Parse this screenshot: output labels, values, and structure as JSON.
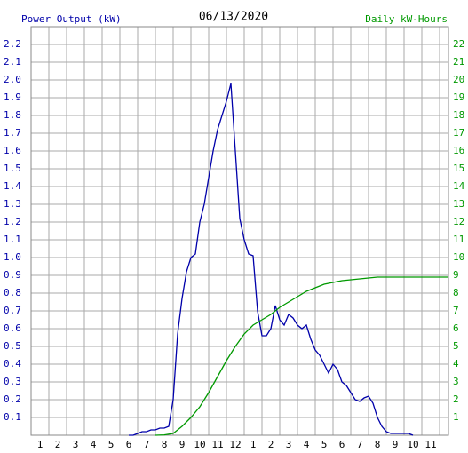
{
  "chart_data": {
    "type": "line",
    "title": "06/13/2020",
    "ylabel": "Power Output (kW)",
    "y2label": "Daily kW-Hours",
    "xlim": [
      0,
      23.5
    ],
    "xticks": [
      {
        "value": 0.5,
        "label": "1"
      },
      {
        "value": 1.5,
        "label": "2"
      },
      {
        "value": 2.5,
        "label": "3"
      },
      {
        "value": 3.5,
        "label": "4"
      },
      {
        "value": 4.5,
        "label": "5"
      },
      {
        "value": 5.5,
        "label": "6"
      },
      {
        "value": 6.5,
        "label": "7"
      },
      {
        "value": 7.5,
        "label": "8"
      },
      {
        "value": 8.5,
        "label": "9"
      },
      {
        "value": 9.5,
        "label": "10"
      },
      {
        "value": 10.5,
        "label": "11"
      },
      {
        "value": 11.5,
        "label": "12"
      },
      {
        "value": 12.5,
        "label": "1"
      },
      {
        "value": 13.5,
        "label": "2"
      },
      {
        "value": 14.5,
        "label": "3"
      },
      {
        "value": 15.5,
        "label": "4"
      },
      {
        "value": 16.5,
        "label": "5"
      },
      {
        "value": 17.5,
        "label": "6"
      },
      {
        "value": 18.5,
        "label": "7"
      },
      {
        "value": 19.5,
        "label": "8"
      },
      {
        "value": 20.5,
        "label": "9"
      },
      {
        "value": 21.5,
        "label": "10"
      },
      {
        "value": 22.5,
        "label": "11"
      }
    ],
    "ylim": [
      0,
      2.3
    ],
    "yticks": [
      0.1,
      0.2,
      0.3,
      0.4,
      0.5,
      0.6,
      0.7,
      0.8,
      0.9,
      {
        "value": 1,
        "label": "1.0"
      },
      1.1,
      1.2,
      1.3,
      1.4,
      1.5,
      1.6,
      1.7,
      1.8,
      1.9,
      {
        "value": 2,
        "label": "2.0"
      },
      2.1,
      2.2
    ],
    "y2lim": [
      0,
      23
    ],
    "y2ticks": [
      1,
      2,
      3,
      4,
      5,
      6,
      7,
      8,
      9,
      10,
      11,
      12,
      13,
      14,
      15,
      16,
      17,
      18,
      19,
      20,
      21,
      22
    ],
    "grid": true,
    "series": [
      {
        "color": "#0000aa",
        "x": [
          5.5,
          5.75,
          6,
          6.25,
          6.5,
          6.75,
          7,
          7.25,
          7.5,
          7.75,
          8,
          8.25,
          8.5,
          8.75,
          9,
          9.25,
          9.5,
          9.75,
          10,
          10.25,
          10.5,
          10.75,
          11,
          11.25,
          11.5,
          11.75,
          12,
          12.25,
          12.5,
          12.75,
          13,
          13.25,
          13.5,
          13.75,
          14,
          14.25,
          14.5,
          14.75,
          15,
          15.25,
          15.5,
          15.75,
          16,
          16.25,
          16.5,
          16.75,
          17,
          17.25,
          17.5,
          17.75,
          18,
          18.25,
          18.5,
          18.75,
          19,
          19.25,
          19.5,
          19.75,
          20,
          20.25,
          20.5,
          20.75,
          21,
          21.25,
          21.5
        ],
        "values": [
          0,
          0,
          0.01,
          0.02,
          0.02,
          0.03,
          0.03,
          0.04,
          0.04,
          0.05,
          0.2,
          0.57,
          0.77,
          0.92,
          1.0,
          1.02,
          1.2,
          1.3,
          1.45,
          1.6,
          1.72,
          1.8,
          1.88,
          1.98,
          1.6,
          1.22,
          1.1,
          1.02,
          1.01,
          0.7,
          0.56,
          0.56,
          0.6,
          0.73,
          0.65,
          0.62,
          0.68,
          0.66,
          0.62,
          0.6,
          0.62,
          0.54,
          0.48,
          0.45,
          0.4,
          0.35,
          0.4,
          0.37,
          0.3,
          0.28,
          0.24,
          0.2,
          0.19,
          0.21,
          0.22,
          0.18,
          0.1,
          0.05,
          0.02,
          0.01,
          0.01,
          0.01,
          0.01,
          0.01,
          0
        ]
      },
      {
        "color": "#009900",
        "axis": "y2",
        "x": [
          7,
          7.5,
          8,
          8.5,
          9,
          9.5,
          10,
          10.5,
          11,
          11.5,
          12,
          12.5,
          13,
          13.5,
          14,
          14.5,
          15,
          15.5,
          16,
          16.5,
          17,
          17.5,
          18,
          18.5,
          19,
          19.5,
          20,
          20.5,
          21,
          21.5,
          22,
          22.5,
          23,
          23.5
        ],
        "values": [
          0,
          0.02,
          0.1,
          0.5,
          1.0,
          1.6,
          2.4,
          3.3,
          4.2,
          5.0,
          5.7,
          6.2,
          6.5,
          6.8,
          7.2,
          7.5,
          7.8,
          8.1,
          8.3,
          8.5,
          8.6,
          8.7,
          8.75,
          8.8,
          8.85,
          8.9,
          8.9,
          8.9,
          8.9,
          8.9,
          8.9,
          8.9,
          8.9,
          8.9
        ]
      }
    ]
  }
}
